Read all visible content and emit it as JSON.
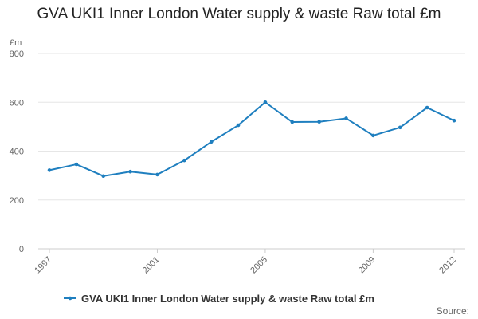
{
  "chart_data": {
    "type": "line",
    "title": "GVA UKI1 Inner London Water supply & waste Raw total £m",
    "ylabel": "£m",
    "xlabel": "",
    "x": [
      1997,
      1998,
      1999,
      2000,
      2001,
      2002,
      2003,
      2004,
      2005,
      2006,
      2007,
      2008,
      2009,
      2010,
      2011,
      2012
    ],
    "x_tick_labels": [
      "1997",
      "2001",
      "2005",
      "2009",
      "2012"
    ],
    "x_tick_values": [
      1997,
      2001,
      2005,
      2009,
      2012
    ],
    "ylim": [
      0,
      800
    ],
    "y_ticks": [
      0,
      200,
      400,
      600,
      800
    ],
    "grid": true,
    "legend_position": "bottom",
    "series": [
      {
        "name": "GVA UKI1 Inner London Water supply & waste Raw total £m",
        "color": "#1f7fbf",
        "values": [
          322,
          346,
          298,
          316,
          304,
          362,
          438,
          506,
          600,
          519,
          520,
          534,
          464,
          497,
          578,
          525
        ]
      }
    ]
  },
  "footer": {
    "source_label": "Source:"
  }
}
